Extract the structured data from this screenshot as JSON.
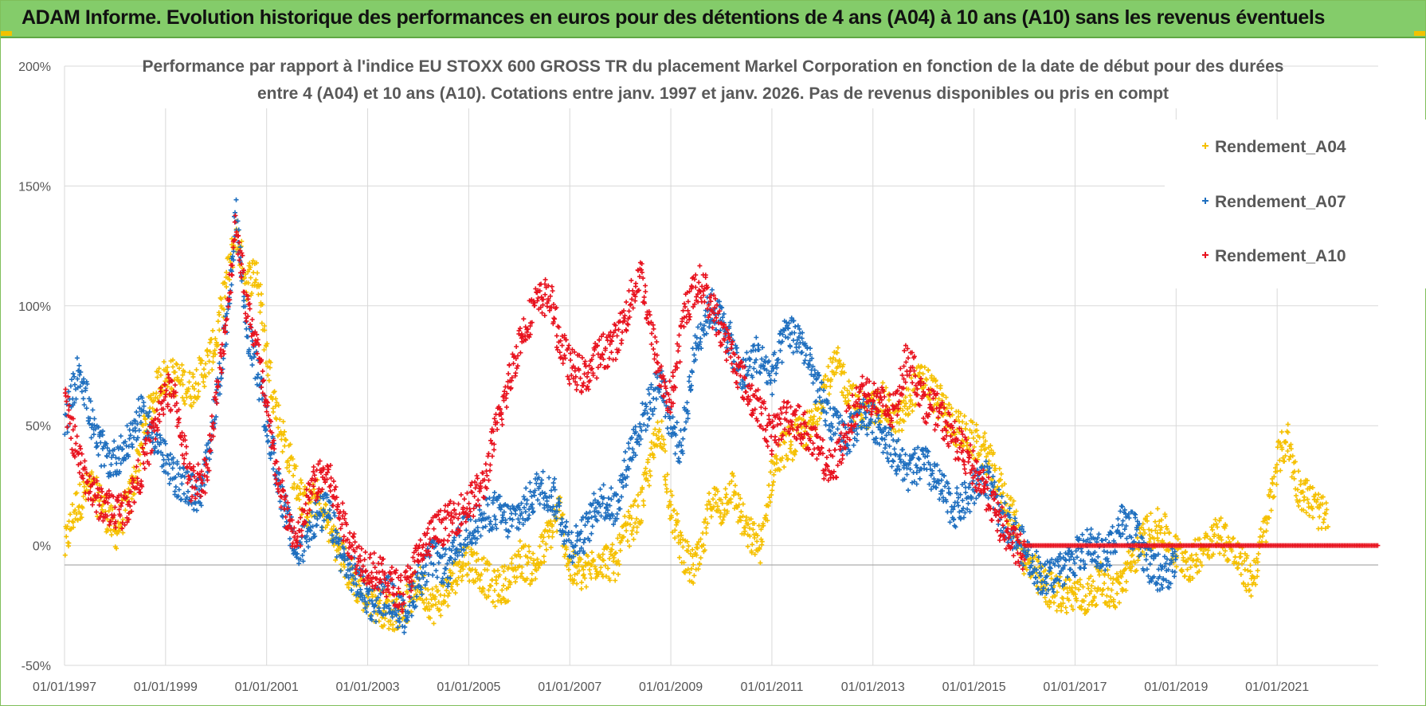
{
  "banner": {
    "title": "ADAM Informe. Evolution historique des performances en euros pour des détentions de 4 ans (A04) à 10 ans (A10) sans les revenus éventuels"
  },
  "colors": {
    "A04": "#f5c000",
    "A07": "#1f6fbf",
    "A10": "#e8121e",
    "banner": "#84cc6a",
    "grid": "#d9d9d9",
    "text": "#595959"
  },
  "chart_data": {
    "type": "scatter",
    "marker": "plus",
    "title_lines": [
      "Performance par rapport à l'indice EU STOXX 600 GROSS TR  du placement Markel Corporation en fonction de la date de début pour des durées",
      "entre 4 (A04) et 10 ans (A10).  Cotations entre janv. 1997 et janv. 2026. Pas de revenus disponibles ou pris en compt"
    ],
    "x_range": [
      1997.0,
      2023.0
    ],
    "x_ticks": [
      1997,
      1999,
      2001,
      2003,
      2005,
      2007,
      2009,
      2011,
      2013,
      2015,
      2017,
      2019,
      2021
    ],
    "x_tick_labels": [
      "01/01/1997",
      "01/01/1999",
      "01/01/2001",
      "01/01/2003",
      "01/01/2005",
      "01/01/2007",
      "01/01/2009",
      "01/01/2011",
      "01/01/2013",
      "01/01/2015",
      "01/01/2017",
      "01/01/2019",
      "01/01/2021"
    ],
    "y_range": [
      -50,
      200
    ],
    "y_ticks": [
      -50,
      0,
      50,
      100,
      150,
      200
    ],
    "y_tick_labels": [
      "-50%",
      "0%",
      "50%",
      "100%",
      "150%",
      "200%"
    ],
    "grid": true,
    "legend_position": "top-right",
    "series": [
      {
        "name": "Rendement_A04",
        "color": "#f5c000",
        "end": 2022.0,
        "points": [
          [
            1997.0,
            -2
          ],
          [
            1997.2,
            15
          ],
          [
            1997.5,
            25
          ],
          [
            1997.8,
            15
          ],
          [
            1998.0,
            5
          ],
          [
            1998.3,
            20
          ],
          [
            1998.6,
            50
          ],
          [
            1998.9,
            70
          ],
          [
            1999.2,
            70
          ],
          [
            1999.5,
            65
          ],
          [
            1999.8,
            75
          ],
          [
            2000.0,
            85
          ],
          [
            2000.2,
            110
          ],
          [
            2000.4,
            130
          ],
          [
            2000.6,
            110
          ],
          [
            2000.8,
            115
          ],
          [
            2001.0,
            80
          ],
          [
            2001.2,
            55
          ],
          [
            2001.4,
            40
          ],
          [
            2001.6,
            25
          ],
          [
            2001.8,
            15
          ],
          [
            2002.0,
            20
          ],
          [
            2002.3,
            5
          ],
          [
            2002.6,
            -10
          ],
          [
            2002.9,
            -20
          ],
          [
            2003.2,
            -25
          ],
          [
            2003.5,
            -28
          ],
          [
            2003.8,
            -24
          ],
          [
            2004.0,
            -15
          ],
          [
            2004.3,
            -25
          ],
          [
            2004.6,
            -18
          ],
          [
            2004.9,
            -5
          ],
          [
            2005.2,
            -10
          ],
          [
            2005.5,
            -18
          ],
          [
            2005.8,
            -15
          ],
          [
            2006.0,
            -5
          ],
          [
            2006.3,
            -10
          ],
          [
            2006.6,
            5
          ],
          [
            2006.8,
            15
          ],
          [
            2007.0,
            -10
          ],
          [
            2007.3,
            -12
          ],
          [
            2007.6,
            -5
          ],
          [
            2007.9,
            -8
          ],
          [
            2008.1,
            5
          ],
          [
            2008.4,
            15
          ],
          [
            2008.6,
            35
          ],
          [
            2008.8,
            50
          ],
          [
            2009.0,
            15
          ],
          [
            2009.2,
            0
          ],
          [
            2009.4,
            -10
          ],
          [
            2009.6,
            -5
          ],
          [
            2009.8,
            20
          ],
          [
            2010.0,
            15
          ],
          [
            2010.2,
            25
          ],
          [
            2010.5,
            5
          ],
          [
            2010.8,
            0
          ],
          [
            2011.0,
            30
          ],
          [
            2011.2,
            40
          ],
          [
            2011.5,
            45
          ],
          [
            2011.8,
            50
          ],
          [
            2012.0,
            65
          ],
          [
            2012.3,
            75
          ],
          [
            2012.6,
            60
          ],
          [
            2012.9,
            55
          ],
          [
            2013.2,
            60
          ],
          [
            2013.5,
            50
          ],
          [
            2013.8,
            65
          ],
          [
            2014.0,
            70
          ],
          [
            2014.3,
            60
          ],
          [
            2014.6,
            50
          ],
          [
            2014.9,
            45
          ],
          [
            2015.2,
            40
          ],
          [
            2015.5,
            25
          ],
          [
            2015.8,
            10
          ],
          [
            2016.0,
            -5
          ],
          [
            2016.3,
            -15
          ],
          [
            2016.6,
            -20
          ],
          [
            2016.9,
            -20
          ],
          [
            2017.2,
            -22
          ],
          [
            2017.5,
            -15
          ],
          [
            2017.8,
            -20
          ],
          [
            2018.1,
            -8
          ],
          [
            2018.4,
            5
          ],
          [
            2018.7,
            8
          ],
          [
            2019.0,
            -3
          ],
          [
            2019.3,
            -8
          ],
          [
            2019.6,
            2
          ],
          [
            2019.9,
            5
          ],
          [
            2020.2,
            -5
          ],
          [
            2020.5,
            -15
          ],
          [
            2020.8,
            10
          ],
          [
            2021.0,
            35
          ],
          [
            2021.2,
            45
          ],
          [
            2021.4,
            25
          ],
          [
            2021.6,
            20
          ],
          [
            2021.8,
            15
          ],
          [
            2022.0,
            10
          ]
        ]
      },
      {
        "name": "Rendement_A07",
        "color": "#1f6fbf",
        "end": 2019.0,
        "points": [
          [
            1997.0,
            50
          ],
          [
            1997.3,
            75
          ],
          [
            1997.6,
            45
          ],
          [
            1997.9,
            35
          ],
          [
            1998.2,
            40
          ],
          [
            1998.5,
            55
          ],
          [
            1998.8,
            45
          ],
          [
            1999.1,
            30
          ],
          [
            1999.4,
            25
          ],
          [
            1999.7,
            20
          ],
          [
            2000.0,
            60
          ],
          [
            2000.2,
            90
          ],
          [
            2000.4,
            140
          ],
          [
            2000.6,
            90
          ],
          [
            2000.8,
            75
          ],
          [
            2001.0,
            50
          ],
          [
            2001.3,
            20
          ],
          [
            2001.6,
            -5
          ],
          [
            2001.9,
            10
          ],
          [
            2002.2,
            15
          ],
          [
            2002.5,
            -5
          ],
          [
            2002.8,
            -15
          ],
          [
            2003.1,
            -25
          ],
          [
            2003.4,
            -20
          ],
          [
            2003.7,
            -30
          ],
          [
            2004.0,
            -15
          ],
          [
            2004.3,
            -5
          ],
          [
            2004.6,
            -10
          ],
          [
            2004.9,
            5
          ],
          [
            2005.2,
            10
          ],
          [
            2005.5,
            15
          ],
          [
            2005.8,
            10
          ],
          [
            2006.1,
            15
          ],
          [
            2006.4,
            25
          ],
          [
            2006.7,
            20
          ],
          [
            2007.0,
            0
          ],
          [
            2007.3,
            5
          ],
          [
            2007.6,
            20
          ],
          [
            2007.9,
            15
          ],
          [
            2008.2,
            40
          ],
          [
            2008.5,
            55
          ],
          [
            2008.8,
            70
          ],
          [
            2009.0,
            50
          ],
          [
            2009.2,
            40
          ],
          [
            2009.5,
            85
          ],
          [
            2009.8,
            100
          ],
          [
            2010.1,
            90
          ],
          [
            2010.4,
            70
          ],
          [
            2010.7,
            80
          ],
          [
            2011.0,
            70
          ],
          [
            2011.3,
            90
          ],
          [
            2011.6,
            85
          ],
          [
            2011.9,
            65
          ],
          [
            2012.2,
            50
          ],
          [
            2012.5,
            45
          ],
          [
            2012.8,
            55
          ],
          [
            2013.1,
            50
          ],
          [
            2013.4,
            40
          ],
          [
            2013.7,
            30
          ],
          [
            2014.0,
            35
          ],
          [
            2014.3,
            25
          ],
          [
            2014.6,
            15
          ],
          [
            2014.9,
            20
          ],
          [
            2015.2,
            30
          ],
          [
            2015.5,
            15
          ],
          [
            2015.8,
            5
          ],
          [
            2016.1,
            -5
          ],
          [
            2016.4,
            -15
          ],
          [
            2016.7,
            -10
          ],
          [
            2017.0,
            -5
          ],
          [
            2017.3,
            0
          ],
          [
            2017.6,
            -5
          ],
          [
            2017.9,
            10
          ],
          [
            2018.2,
            5
          ],
          [
            2018.5,
            -10
          ],
          [
            2018.8,
            -12
          ],
          [
            2019.0,
            -5
          ]
        ]
      },
      {
        "name": "Rendement_A10",
        "color": "#e8121e",
        "end": 2016.0,
        "flat_from": 2016.0,
        "flat_to": 2023.0,
        "flat_value": 0,
        "points": [
          [
            1997.0,
            60
          ],
          [
            1997.3,
            35
          ],
          [
            1997.6,
            20
          ],
          [
            1997.9,
            15
          ],
          [
            1998.2,
            15
          ],
          [
            1998.5,
            30
          ],
          [
            1998.8,
            50
          ],
          [
            1999.0,
            65
          ],
          [
            1999.2,
            60
          ],
          [
            1999.5,
            25
          ],
          [
            1999.8,
            30
          ],
          [
            2000.0,
            60
          ],
          [
            2000.2,
            95
          ],
          [
            2000.4,
            135
          ],
          [
            2000.6,
            100
          ],
          [
            2000.8,
            85
          ],
          [
            2001.0,
            55
          ],
          [
            2001.3,
            20
          ],
          [
            2001.6,
            0
          ],
          [
            2001.9,
            25
          ],
          [
            2002.2,
            30
          ],
          [
            2002.5,
            10
          ],
          [
            2002.8,
            -5
          ],
          [
            2003.1,
            -10
          ],
          [
            2003.4,
            -15
          ],
          [
            2003.7,
            -20
          ],
          [
            2004.0,
            -5
          ],
          [
            2004.3,
            5
          ],
          [
            2004.6,
            10
          ],
          [
            2004.9,
            15
          ],
          [
            2005.1,
            20
          ],
          [
            2005.3,
            25
          ],
          [
            2005.5,
            45
          ],
          [
            2005.7,
            60
          ],
          [
            2006.0,
            85
          ],
          [
            2006.3,
            100
          ],
          [
            2006.6,
            105
          ],
          [
            2006.8,
            85
          ],
          [
            2007.0,
            75
          ],
          [
            2007.3,
            70
          ],
          [
            2007.6,
            80
          ],
          [
            2007.9,
            85
          ],
          [
            2008.1,
            95
          ],
          [
            2008.4,
            115
          ],
          [
            2008.6,
            90
          ],
          [
            2008.8,
            70
          ],
          [
            2009.0,
            60
          ],
          [
            2009.3,
            100
          ],
          [
            2009.6,
            110
          ],
          [
            2009.9,
            95
          ],
          [
            2010.2,
            80
          ],
          [
            2010.5,
            65
          ],
          [
            2010.8,
            55
          ],
          [
            2011.0,
            45
          ],
          [
            2011.3,
            55
          ],
          [
            2011.6,
            50
          ],
          [
            2011.9,
            40
          ],
          [
            2012.2,
            30
          ],
          [
            2012.5,
            50
          ],
          [
            2012.8,
            65
          ],
          [
            2013.1,
            60
          ],
          [
            2013.4,
            55
          ],
          [
            2013.7,
            80
          ],
          [
            2014.0,
            60
          ],
          [
            2014.3,
            55
          ],
          [
            2014.6,
            45
          ],
          [
            2014.9,
            35
          ],
          [
            2015.2,
            25
          ],
          [
            2015.5,
            10
          ],
          [
            2015.8,
            0
          ],
          [
            2016.0,
            -5
          ]
        ]
      }
    ]
  }
}
